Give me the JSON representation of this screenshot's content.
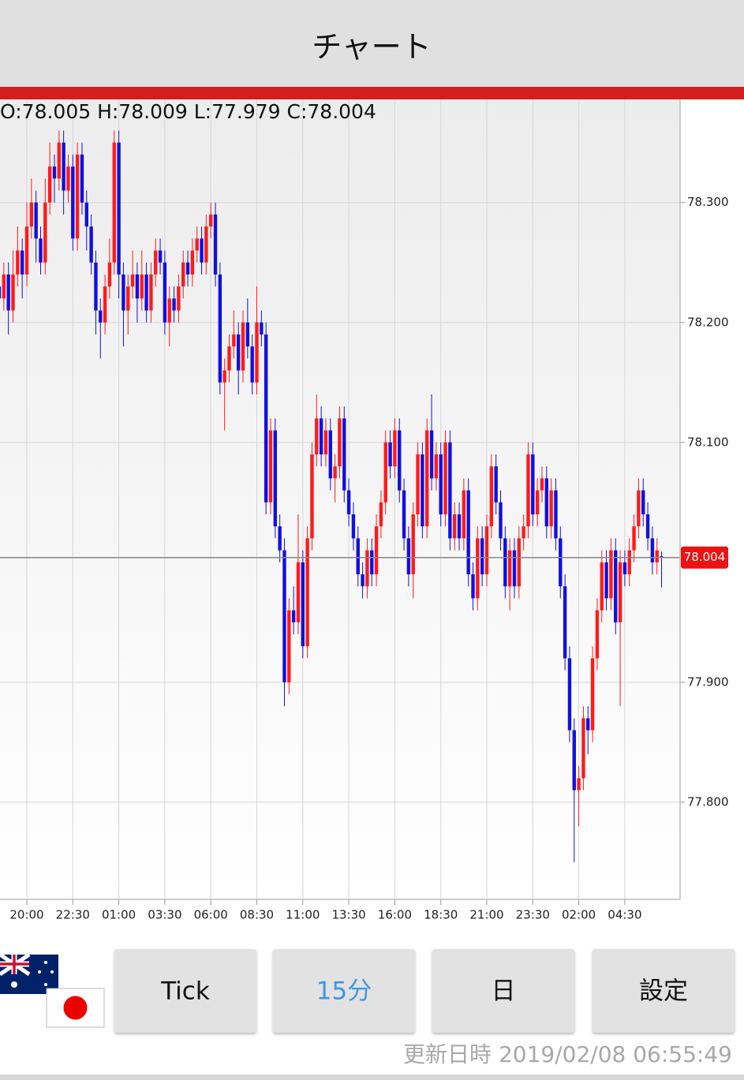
{
  "header": {
    "title": "チャート"
  },
  "chart_data": {
    "type": "candlestick",
    "ohlc_text": "O:78.005 H:78.009 L:77.979 C:78.004",
    "up_color": "#ff1a1a",
    "down_color": "#1010e0",
    "grid": true,
    "last_price": 78.004,
    "ylim": [
      77.719,
      78.386
    ],
    "yticks": [
      {
        "value": 77.8,
        "label": "77.800"
      },
      {
        "value": 77.9,
        "label": "77.900"
      },
      {
        "value": 78.1,
        "label": "78.100"
      },
      {
        "value": 78.2,
        "label": "78.200"
      },
      {
        "value": 78.3,
        "label": "78.300"
      }
    ],
    "categories": [
      null,
      null,
      null,
      null,
      null,
      null,
      "20:00",
      null,
      null,
      null,
      null,
      null,
      null,
      null,
      null,
      null,
      "22:30",
      null,
      null,
      null,
      null,
      null,
      null,
      null,
      null,
      null,
      "01:00",
      null,
      null,
      null,
      null,
      null,
      null,
      null,
      null,
      null,
      "03:30",
      null,
      null,
      null,
      null,
      null,
      null,
      null,
      null,
      null,
      "06:00",
      null,
      null,
      null,
      null,
      null,
      null,
      null,
      null,
      null,
      "08:30",
      null,
      null,
      null,
      null,
      null,
      null,
      null,
      null,
      null,
      "11:00",
      null,
      null,
      null,
      null,
      null,
      null,
      null,
      null,
      null,
      "13:30",
      null,
      null,
      null,
      null,
      null,
      null,
      null,
      null,
      null,
      "16:00",
      null,
      null,
      null,
      null,
      null,
      null,
      null,
      null,
      null,
      "18:30",
      null,
      null,
      null,
      null,
      null,
      null,
      null,
      null,
      null,
      "21:00",
      null,
      null,
      null,
      null,
      null,
      null,
      null,
      null,
      null,
      "23:30",
      null,
      null,
      null,
      null,
      null,
      null,
      null,
      null,
      null,
      "02:00",
      null,
      null,
      null,
      null,
      null,
      null,
      null,
      null,
      null,
      "04:30",
      null,
      null,
      null,
      null,
      null,
      null,
      null,
      null
    ],
    "candles": [
      [
        78.23,
        78.24,
        78.21,
        78.22
      ],
      [
        78.22,
        78.25,
        78.21,
        78.24
      ],
      [
        78.24,
        78.25,
        78.19,
        78.21
      ],
      [
        78.21,
        78.26,
        78.2,
        78.24
      ],
      [
        78.24,
        78.28,
        78.23,
        78.26
      ],
      [
        78.26,
        78.27,
        78.22,
        78.24
      ],
      [
        78.24,
        78.3,
        78.23,
        78.28
      ],
      [
        78.28,
        78.32,
        78.27,
        78.3
      ],
      [
        78.3,
        78.31,
        78.25,
        78.27
      ],
      [
        78.27,
        78.28,
        78.24,
        78.25
      ],
      [
        78.25,
        78.32,
        78.24,
        78.3
      ],
      [
        78.3,
        78.35,
        78.29,
        78.33
      ],
      [
        78.33,
        78.34,
        78.3,
        78.32
      ],
      [
        78.32,
        78.36,
        78.31,
        78.35
      ],
      [
        78.35,
        78.36,
        78.29,
        78.31
      ],
      [
        78.31,
        78.34,
        78.3,
        78.33
      ],
      [
        78.33,
        78.34,
        78.26,
        78.27
      ],
      [
        78.27,
        78.35,
        78.26,
        78.34
      ],
      [
        78.34,
        78.35,
        78.29,
        78.3
      ],
      [
        78.3,
        78.31,
        78.26,
        78.28
      ],
      [
        78.28,
        78.29,
        78.24,
        78.25
      ],
      [
        78.25,
        78.26,
        78.19,
        78.21
      ],
      [
        78.21,
        78.22,
        78.17,
        78.2
      ],
      [
        78.2,
        78.24,
        78.19,
        78.23
      ],
      [
        78.23,
        78.27,
        78.22,
        78.25
      ],
      [
        78.25,
        78.36,
        78.24,
        78.35
      ],
      [
        78.35,
        78.36,
        78.22,
        78.24
      ],
      [
        78.24,
        78.25,
        78.18,
        78.21
      ],
      [
        78.21,
        78.24,
        78.19,
        78.23
      ],
      [
        78.23,
        78.26,
        78.22,
        78.24
      ],
      [
        78.24,
        78.25,
        78.2,
        78.22
      ],
      [
        78.22,
        78.26,
        78.21,
        78.24
      ],
      [
        78.24,
        78.25,
        78.2,
        78.21
      ],
      [
        78.21,
        78.25,
        78.2,
        78.24
      ],
      [
        78.24,
        78.27,
        78.23,
        78.26
      ],
      [
        78.26,
        78.27,
        78.24,
        78.25
      ],
      [
        78.25,
        78.26,
        78.19,
        78.2
      ],
      [
        78.2,
        78.23,
        78.18,
        78.22
      ],
      [
        78.22,
        78.23,
        78.2,
        78.21
      ],
      [
        78.21,
        78.24,
        78.2,
        78.23
      ],
      [
        78.23,
        78.26,
        78.22,
        78.25
      ],
      [
        78.25,
        78.26,
        78.23,
        78.24
      ],
      [
        78.24,
        78.27,
        78.23,
        78.26
      ],
      [
        78.26,
        78.28,
        78.25,
        78.27
      ],
      [
        78.27,
        78.28,
        78.24,
        78.25
      ],
      [
        78.25,
        78.29,
        78.24,
        78.28
      ],
      [
        78.28,
        78.3,
        78.27,
        78.29
      ],
      [
        78.29,
        78.3,
        78.23,
        78.24
      ],
      [
        78.24,
        78.25,
        78.14,
        78.15
      ],
      [
        78.15,
        78.17,
        78.11,
        78.16
      ],
      [
        78.16,
        78.19,
        78.15,
        78.18
      ],
      [
        78.18,
        78.21,
        78.17,
        78.19
      ],
      [
        78.19,
        78.2,
        78.14,
        78.16
      ],
      [
        78.16,
        78.21,
        78.15,
        78.2
      ],
      [
        78.2,
        78.22,
        78.17,
        78.18
      ],
      [
        78.18,
        78.19,
        78.14,
        78.15
      ],
      [
        78.15,
        78.23,
        78.14,
        78.2
      ],
      [
        78.2,
        78.21,
        78.18,
        78.19
      ],
      [
        78.19,
        78.2,
        78.04,
        78.05
      ],
      [
        78.05,
        78.12,
        78.04,
        78.11
      ],
      [
        78.11,
        78.12,
        78.02,
        78.03
      ],
      [
        78.03,
        78.04,
        78.0,
        78.01
      ],
      [
        78.01,
        78.02,
        77.88,
        77.9
      ],
      [
        77.9,
        77.97,
        77.89,
        77.96
      ],
      [
        77.96,
        77.98,
        77.94,
        77.95
      ],
      [
        77.95,
        78.04,
        77.94,
        78.0
      ],
      [
        78.0,
        78.01,
        77.92,
        77.93
      ],
      [
        77.93,
        78.03,
        77.92,
        78.02
      ],
      [
        78.02,
        78.1,
        78.01,
        78.09
      ],
      [
        78.09,
        78.14,
        78.08,
        78.12
      ],
      [
        78.12,
        78.13,
        78.08,
        78.09
      ],
      [
        78.09,
        78.12,
        78.08,
        78.11
      ],
      [
        78.11,
        78.12,
        78.06,
        78.07
      ],
      [
        78.07,
        78.09,
        78.05,
        78.08
      ],
      [
        78.08,
        78.13,
        78.07,
        78.12
      ],
      [
        78.12,
        78.13,
        78.05,
        78.06
      ],
      [
        78.06,
        78.07,
        78.03,
        78.04
      ],
      [
        78.04,
        78.05,
        78.01,
        78.02
      ],
      [
        78.02,
        78.03,
        77.98,
        77.99
      ],
      [
        77.99,
        78.0,
        77.97,
        77.98
      ],
      [
        77.98,
        78.02,
        77.97,
        78.01
      ],
      [
        78.01,
        78.02,
        77.98,
        77.99
      ],
      [
        77.99,
        78.04,
        77.98,
        78.03
      ],
      [
        78.03,
        78.06,
        78.02,
        78.05
      ],
      [
        78.05,
        78.11,
        78.04,
        78.1
      ],
      [
        78.1,
        78.11,
        78.07,
        78.08
      ],
      [
        78.08,
        78.12,
        78.07,
        78.11
      ],
      [
        78.11,
        78.12,
        78.05,
        78.06
      ],
      [
        78.06,
        78.07,
        78.01,
        78.02
      ],
      [
        78.02,
        78.03,
        77.98,
        77.99
      ],
      [
        77.99,
        78.05,
        77.97,
        78.04
      ],
      [
        78.04,
        78.1,
        78.03,
        78.09
      ],
      [
        78.09,
        78.1,
        78.02,
        78.03
      ],
      [
        78.03,
        78.12,
        78.02,
        78.11
      ],
      [
        78.11,
        78.14,
        78.06,
        78.07
      ],
      [
        78.07,
        78.1,
        78.06,
        78.09
      ],
      [
        78.09,
        78.1,
        78.03,
        78.04
      ],
      [
        78.04,
        78.11,
        78.03,
        78.1
      ],
      [
        78.1,
        78.11,
        78.01,
        78.02
      ],
      [
        78.02,
        78.05,
        78.01,
        78.04
      ],
      [
        78.04,
        78.05,
        78.01,
        78.02
      ],
      [
        78.02,
        78.07,
        78.01,
        78.06
      ],
      [
        78.06,
        78.07,
        77.98,
        77.99
      ],
      [
        77.99,
        78.0,
        77.96,
        77.97
      ],
      [
        77.97,
        78.03,
        77.96,
        78.02
      ],
      [
        78.02,
        78.03,
        77.98,
        77.99
      ],
      [
        77.99,
        78.04,
        77.98,
        78.03
      ],
      [
        78.03,
        78.09,
        78.02,
        78.08
      ],
      [
        78.08,
        78.09,
        78.04,
        78.05
      ],
      [
        78.05,
        78.06,
        78.01,
        78.02
      ],
      [
        78.02,
        78.03,
        77.97,
        77.98
      ],
      [
        77.98,
        78.02,
        77.96,
        78.01
      ],
      [
        78.01,
        78.02,
        77.97,
        77.98
      ],
      [
        77.98,
        78.03,
        77.97,
        78.02
      ],
      [
        78.02,
        78.04,
        78.01,
        78.03
      ],
      [
        78.03,
        78.1,
        78.02,
        78.09
      ],
      [
        78.09,
        78.1,
        78.03,
        78.04
      ],
      [
        78.04,
        78.07,
        78.03,
        78.06
      ],
      [
        78.06,
        78.08,
        78.05,
        78.07
      ],
      [
        78.07,
        78.08,
        78.02,
        78.03
      ],
      [
        78.03,
        78.07,
        78.02,
        78.06
      ],
      [
        78.06,
        78.07,
        78.01,
        78.02
      ],
      [
        78.02,
        78.03,
        77.97,
        77.98
      ],
      [
        77.98,
        77.99,
        77.91,
        77.92
      ],
      [
        77.92,
        77.93,
        77.85,
        77.86
      ],
      [
        77.86,
        77.87,
        77.75,
        77.81
      ],
      [
        77.81,
        77.83,
        77.78,
        77.82
      ],
      [
        77.82,
        77.88,
        77.81,
        77.87
      ],
      [
        77.87,
        77.88,
        77.84,
        77.86
      ],
      [
        77.86,
        77.93,
        77.85,
        77.92
      ],
      [
        77.92,
        77.97,
        77.91,
        77.96
      ],
      [
        77.96,
        78.01,
        77.95,
        78.0
      ],
      [
        78.0,
        78.01,
        77.96,
        77.97
      ],
      [
        77.97,
        78.02,
        77.96,
        78.01
      ],
      [
        78.01,
        78.02,
        77.94,
        77.95
      ],
      [
        77.95,
        78.01,
        77.88,
        78.0
      ],
      [
        78.0,
        78.01,
        77.98,
        77.99
      ],
      [
        77.99,
        78.02,
        77.98,
        78.01
      ],
      [
        78.01,
        78.04,
        78.0,
        78.03
      ],
      [
        78.03,
        78.07,
        78.02,
        78.06
      ],
      [
        78.06,
        78.07,
        78.03,
        78.04
      ],
      [
        78.04,
        78.05,
        78.01,
        78.02
      ],
      [
        78.02,
        78.03,
        77.99,
        78.0
      ],
      [
        78.0,
        78.02,
        77.99,
        78.01
      ],
      [
        78.005,
        78.009,
        77.979,
        78.004
      ]
    ]
  },
  "buttons": [
    "Tick",
    "15分",
    "日",
    "設定"
  ],
  "footer": {
    "updated": "更新日時 2019/02/08 06:55:49"
  }
}
